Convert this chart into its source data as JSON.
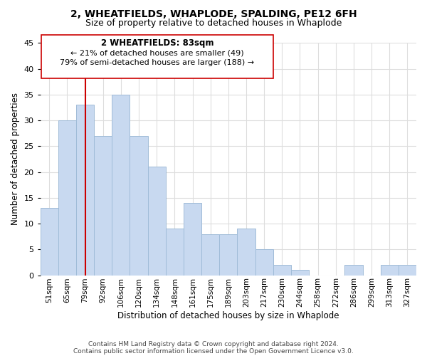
{
  "title": "2, WHEATFIELDS, WHAPLODE, SPALDING, PE12 6FH",
  "subtitle": "Size of property relative to detached houses in Whaplode",
  "xlabel": "Distribution of detached houses by size in Whaplode",
  "ylabel": "Number of detached properties",
  "bar_color": "#c8d9f0",
  "bar_edge_color": "#a0bcd8",
  "vline_color": "#cc0000",
  "vline_x_idx": 2,
  "categories": [
    "51sqm",
    "65sqm",
    "79sqm",
    "92sqm",
    "106sqm",
    "120sqm",
    "134sqm",
    "148sqm",
    "161sqm",
    "175sqm",
    "189sqm",
    "203sqm",
    "217sqm",
    "230sqm",
    "244sqm",
    "258sqm",
    "272sqm",
    "286sqm",
    "299sqm",
    "313sqm",
    "327sqm"
  ],
  "values": [
    13,
    30,
    33,
    27,
    35,
    27,
    21,
    9,
    14,
    8,
    8,
    9,
    5,
    2,
    1,
    0,
    0,
    2,
    0,
    2,
    2
  ],
  "ylim": [
    0,
    45
  ],
  "yticks": [
    0,
    5,
    10,
    15,
    20,
    25,
    30,
    35,
    40,
    45
  ],
  "annotation_title": "2 WHEATFIELDS: 83sqm",
  "annotation_line1": "← 21% of detached houses are smaller (49)",
  "annotation_line2": "79% of semi-detached houses are larger (188) →",
  "footer1": "Contains HM Land Registry data © Crown copyright and database right 2024.",
  "footer2": "Contains public sector information licensed under the Open Government Licence v3.0.",
  "background_color": "#ffffff",
  "grid_color": "#dddddd"
}
